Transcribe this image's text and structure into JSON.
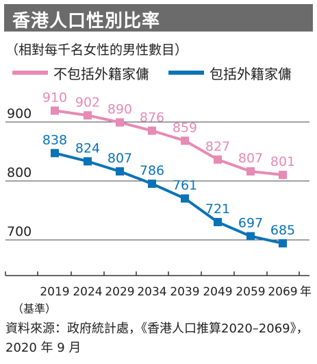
{
  "title": "香港人口性別比率",
  "subtitle": "（相對每千名女性的男性數目）",
  "colors": {
    "pink": "#e78ab5",
    "blue": "#0a73b7",
    "axis": "#333333",
    "title_bg": "#6b6b6b"
  },
  "chart_data": {
    "type": "line",
    "categories": [
      "2019",
      "2024",
      "2029",
      "2034",
      "2039",
      "2049",
      "2059",
      "2069"
    ],
    "first_category_note": "（基準）",
    "year_unit": "年",
    "series": [
      {
        "name": "不包括外籍家傭",
        "color": "#e78ab5",
        "values": [
          910,
          902,
          890,
          876,
          859,
          827,
          807,
          801
        ]
      },
      {
        "name": "包括外籍家傭",
        "color": "#0a73b7",
        "values": [
          838,
          824,
          807,
          786,
          761,
          721,
          697,
          685
        ]
      }
    ],
    "y_ticks": [
      900,
      800,
      700
    ],
    "ylim": [
      635,
      945
    ],
    "grid": "horizontal",
    "legend_position": "top"
  },
  "source": "資料來源：政府統計處，《香港人口推算2020–2069》，2020 年 9 月"
}
